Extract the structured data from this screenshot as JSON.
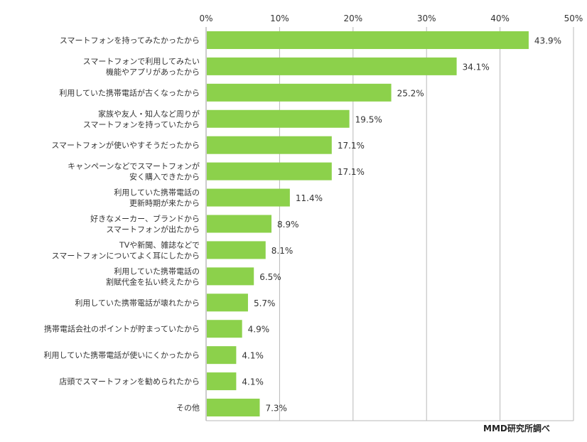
{
  "chart_data": {
    "type": "bar",
    "orientation": "horizontal",
    "categories": [
      "スマートフォンを持ってみたかったから",
      "スマートフォンで利用してみたい\n機能やアプリがあったから",
      "利用していた携帯電話が古くなったから",
      "家族や友人・知人など周りが\nスマートフォンを持っていたから",
      "スマートフォンが使いやすそうだったから",
      "キャンペーンなどでスマートフォンが\n安く購入できたから",
      "利用していた携帯電話の\n更新時期が来たから",
      "好きなメーカー、ブランドから\nスマートフォンが出たから",
      "TVや新聞、雑誌などで\nスマートフォンについてよく耳にしたから",
      "利用していた携帯電話の\n割賦代金を払い終えたから",
      "利用していた携帯電話が壊れたから",
      "携帯電話会社のポイントが貯まっていたから",
      "利用していた携帯電話が使いにくかったから",
      "店頭でスマートフォンを勧められたから",
      "その他"
    ],
    "values": [
      43.9,
      34.1,
      25.2,
      19.5,
      17.1,
      17.1,
      11.4,
      8.9,
      8.1,
      6.5,
      5.7,
      4.9,
      4.1,
      4.1,
      7.3
    ],
    "value_labels": [
      "43.9%",
      "34.1%",
      "25.2%",
      "19.5%",
      "17.1%",
      "17.1%",
      "11.4%",
      "8.9%",
      "8.1%",
      "6.5%",
      "5.7%",
      "4.9%",
      "4.1%",
      "4.1%",
      "7.3%"
    ],
    "x_ticks": [
      "0%",
      "10%",
      "20%",
      "30%",
      "40%",
      "50%"
    ],
    "xlim": [
      0,
      50
    ],
    "axis_position": "top",
    "grid": true,
    "legend": "none",
    "bar_color": "#8cd14b",
    "grid_color": "#b8b8b8"
  },
  "source": "MMD研究所調べ"
}
